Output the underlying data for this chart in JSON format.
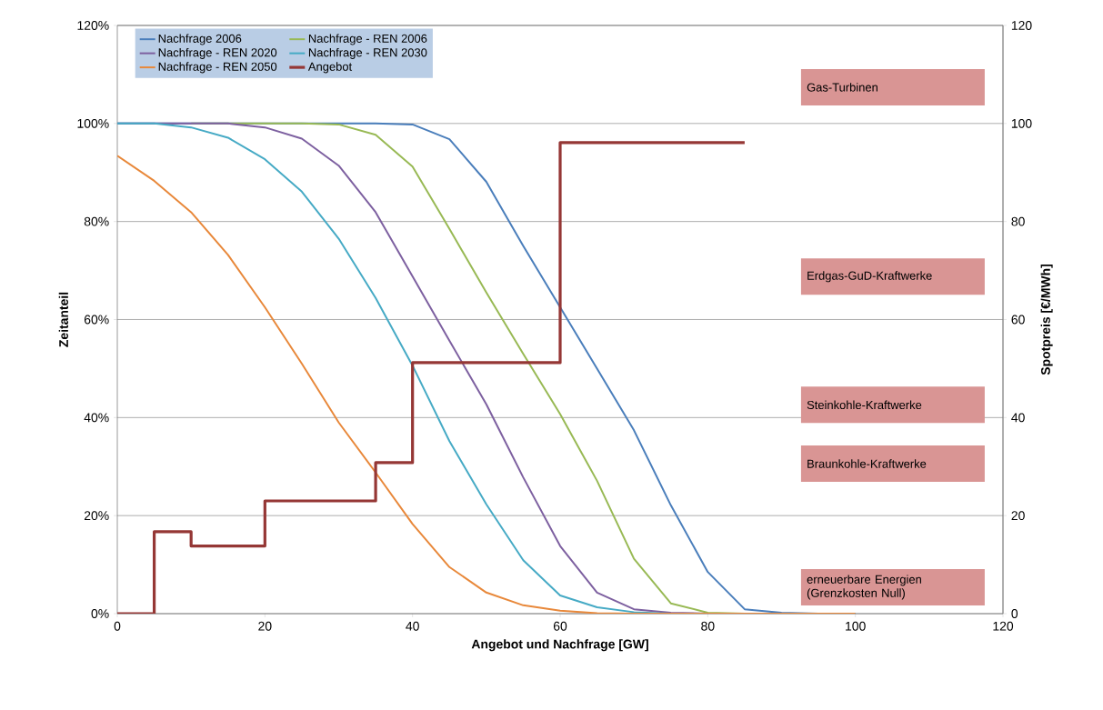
{
  "chart_data": {
    "type": "line",
    "xlabel": "Angebot und Nachfrage [GW]",
    "ylabel": "Zeitanteil",
    "y2label": "Spotpreis [€/MWh]",
    "x": [
      0,
      5,
      10,
      15,
      20,
      25,
      30,
      35,
      40,
      45,
      50,
      55,
      60,
      65,
      70,
      75,
      80,
      85,
      90,
      95,
      100
    ],
    "series": [
      {
        "name": "Nachfrage 2006",
        "color": "#4a7ebb",
        "values": [
          100,
          100,
          100,
          100,
          100,
          100,
          100,
          100,
          99.8,
          96.8,
          88.1,
          75,
          62.5,
          50,
          37.4,
          22.1,
          8.5,
          0.9,
          0.2,
          0,
          0
        ]
      },
      {
        "name": "Nachfrage - REN 2006",
        "color": "#98b954",
        "values": [
          null,
          null,
          100,
          100,
          100,
          100,
          99.8,
          97.7,
          91.2,
          78.5,
          65.5,
          53,
          40.7,
          27.1,
          11.2,
          2.1,
          0.2,
          0,
          0,
          null,
          null
        ]
      },
      {
        "name": "Nachfrage - REN 2020",
        "color": "#7d60a0",
        "values": [
          100,
          100,
          100,
          100,
          99.2,
          96.9,
          91.4,
          81.9,
          68.8,
          55.7,
          42.7,
          27.8,
          13.8,
          4.3,
          0.9,
          0.2,
          0,
          0,
          0,
          0,
          0
        ]
      },
      {
        "name": "Nachfrage - REN 2030",
        "color": "#46aac5",
        "values": [
          100,
          100,
          99.2,
          97.1,
          92.7,
          86.1,
          76.5,
          64.4,
          50.6,
          35.2,
          22.3,
          10.9,
          3.7,
          1.3,
          0.3,
          0,
          0,
          0,
          0,
          0,
          0
        ]
      },
      {
        "name": "Nachfrage - REN 2050",
        "color": "#e8883a",
        "values": [
          93.4,
          88.3,
          81.9,
          73.2,
          62.5,
          51,
          39,
          28.8,
          18.3,
          9.5,
          4.3,
          1.7,
          0.6,
          0.1,
          0,
          0,
          0,
          0,
          0,
          0,
          0
        ]
      },
      {
        "name": "Angebot",
        "color": "#953735",
        "type": "step",
        "axis": "y2",
        "x": [
          0,
          5,
          10,
          20,
          35,
          40,
          60,
          85
        ],
        "values": [
          0,
          16.7,
          13.8,
          23,
          30.8,
          51.2,
          96.1,
          96.1
        ]
      }
    ],
    "xlim": [
      0,
      120
    ],
    "xticks": [
      0,
      20,
      40,
      60,
      80,
      100,
      120
    ],
    "ylim": [
      0,
      120
    ],
    "yticks": [
      {
        "value": 0,
        "label": "0%"
      },
      {
        "value": 20,
        "label": "20%"
      },
      {
        "value": 40,
        "label": "40%"
      },
      {
        "value": 60,
        "label": "60%"
      },
      {
        "value": 80,
        "label": "80%"
      },
      {
        "value": 100,
        "label": "100%"
      },
      {
        "value": 120,
        "label": "120%"
      }
    ],
    "y2lim": [
      0,
      120
    ],
    "y2ticks": [
      0,
      20,
      40,
      60,
      80,
      100,
      120
    ],
    "grid": "y",
    "legend": "top left",
    "marker": "none",
    "line_style": "solid",
    "annotations": [
      "Gas-Turbinen",
      "Erdgas-GuD-Kraftwerke",
      "Steinkohle-Kraftwerke",
      "Braunkohle-Kraftwerke",
      "erneuerbare Energien (Grenzkosten Null)"
    ]
  }
}
